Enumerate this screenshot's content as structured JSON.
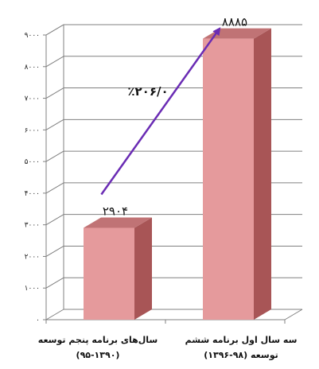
{
  "chart_data": {
    "type": "bar",
    "categories": [
      [
        "سال‌های برنامه پنجم توسعه",
        "(۹۵-۱۳۹۰)"
      ],
      [
        "سه سال اول برنامه ششم",
        "توسعه (۹۸-۱۳۹۶)"
      ]
    ],
    "values": [
      2904,
      8885
    ],
    "value_labels": [
      "۲۹۰۴",
      "۸۸۸۵"
    ],
    "ylim": [
      0,
      9000
    ],
    "yticks": [
      0,
      1000,
      2000,
      3000,
      4000,
      5000,
      6000,
      7000,
      8000,
      9000
    ],
    "ytick_labels": [
      "۰",
      "۱۰۰۰",
      "۲۰۰۰",
      "۳۰۰۰",
      "۴۰۰۰",
      "۵۰۰۰",
      "۶۰۰۰",
      "۷۰۰۰",
      "۸۰۰۰",
      "۹۰۰۰"
    ],
    "annotation": {
      "text": "٪۲۰۶/۰",
      "from_category": 0,
      "to_category": 1
    },
    "grid": true,
    "three_d": true,
    "colors": {
      "bar_front": "#e59a9c",
      "bar_side": "#a85556",
      "bar_top": "#c07375",
      "arrow": "#6a2cb4",
      "grid": "#808080"
    }
  }
}
